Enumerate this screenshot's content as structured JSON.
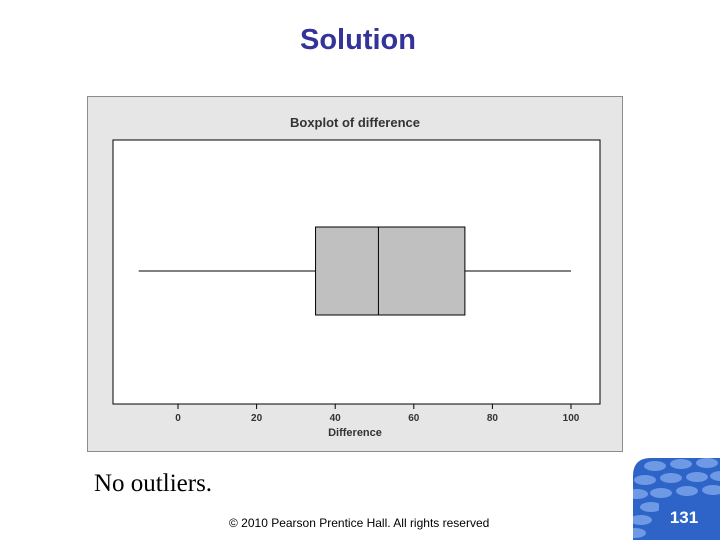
{
  "slide": {
    "title": "Solution",
    "caption": "No outliers.",
    "copyright": "© 2010 Pearson Prentice Hall. All rights reserved",
    "page_number": "131"
  },
  "colors": {
    "title": "#33339a",
    "frame_bg": "#e6e6e6",
    "box_fill": "#c0c0c0",
    "badge": "#2e64c8"
  },
  "chart_data": {
    "type": "boxplot",
    "title": "Boxplot of difference",
    "xlabel": "Difference",
    "xlim": [
      -10,
      107
    ],
    "ticks": [
      0,
      20,
      40,
      60,
      80,
      100
    ],
    "tick_labels": [
      "0",
      "20",
      "40",
      "60",
      "80",
      "100"
    ],
    "grid": false,
    "boxplot": {
      "min": -10,
      "q1": 35,
      "median": 51,
      "q3": 73,
      "max": 100
    }
  }
}
